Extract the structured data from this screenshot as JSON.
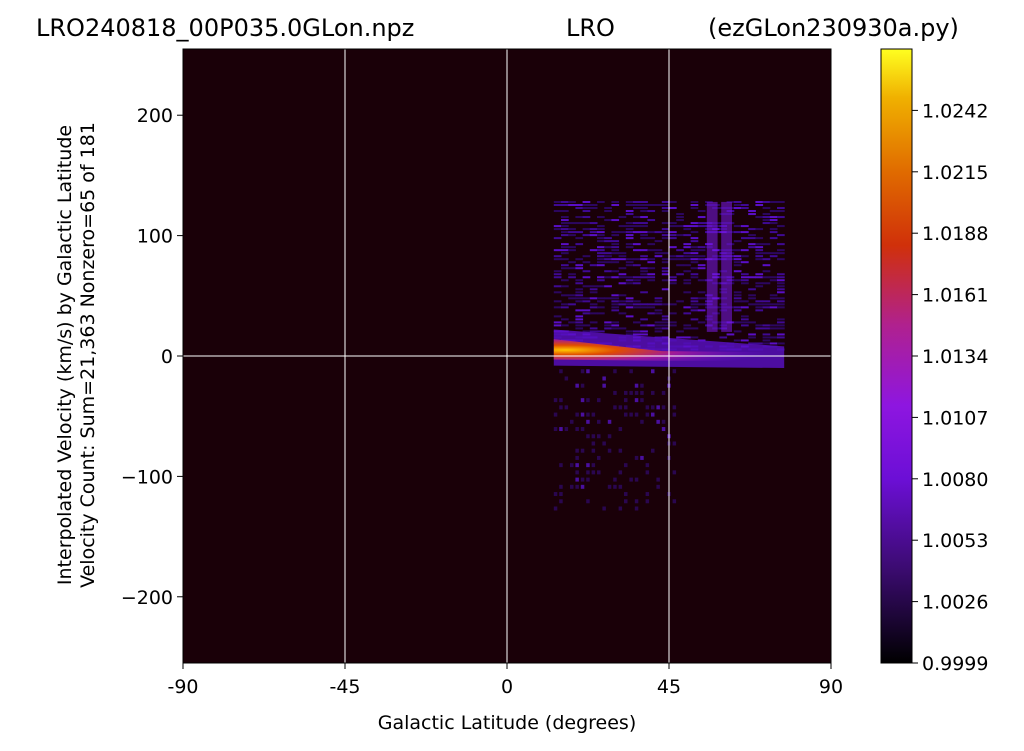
{
  "chart_data": {
    "type": "heatmap",
    "title": {
      "left": "LRO240818_00P035.0GLon.npz",
      "center": "LRO",
      "right": "(ezGLon230930a.py)"
    },
    "xlabel": "Galactic Latitude (degrees)",
    "ylabel": [
      "Interpolated Velocity (km/s) by Galactic Latitude",
      "Velocity Count: Sum=21,363 Nonzero=65 of 181"
    ],
    "xlim": [
      -90,
      90
    ],
    "ylim": [
      -255,
      255
    ],
    "x_ticks": [
      -90,
      -45,
      0,
      45,
      90
    ],
    "x_tick_labels": [
      "-90",
      "-45",
      "0",
      "45",
      "90"
    ],
    "y_ticks": [
      200,
      100,
      0,
      -100,
      -200
    ],
    "y_tick_labels": [
      "200",
      "100",
      "0",
      "−100",
      "−200"
    ],
    "grid_x": [
      -45,
      0,
      45
    ],
    "grid_y": [
      0
    ],
    "colormap": "gnuplot",
    "background_color": "#1a0008",
    "data_extent": {
      "x_range": [
        13,
        77
      ],
      "velocity_range_full": [
        -128,
        128
      ],
      "velocity_range_dense": [
        -128,
        128
      ]
    },
    "features": [
      {
        "name": "ridge",
        "x_range": [
          13,
          77
        ],
        "velocity_start": 5,
        "velocity_end": 0,
        "peak_value": 1.0242
      },
      {
        "name": "bright-column",
        "x": 57,
        "velocity_range": [
          20,
          128
        ],
        "value": 1.008
      },
      {
        "name": "bright-column",
        "x": 61,
        "velocity_range": [
          20,
          128
        ],
        "value": 1.008
      }
    ],
    "colorbar": {
      "min": 0.9999,
      "max": 1.0269,
      "ticks": [
        1.0242,
        1.0215,
        1.0188,
        1.0161,
        1.0134,
        1.0107,
        1.008,
        1.0053,
        1.0026,
        0.9999
      ],
      "tick_labels": [
        "1.0242",
        "1.0215",
        "1.0188",
        "1.0161",
        "1.0134",
        "1.0107",
        "1.0080",
        "1.0053",
        "1.0026",
        "0.9999"
      ]
    }
  }
}
